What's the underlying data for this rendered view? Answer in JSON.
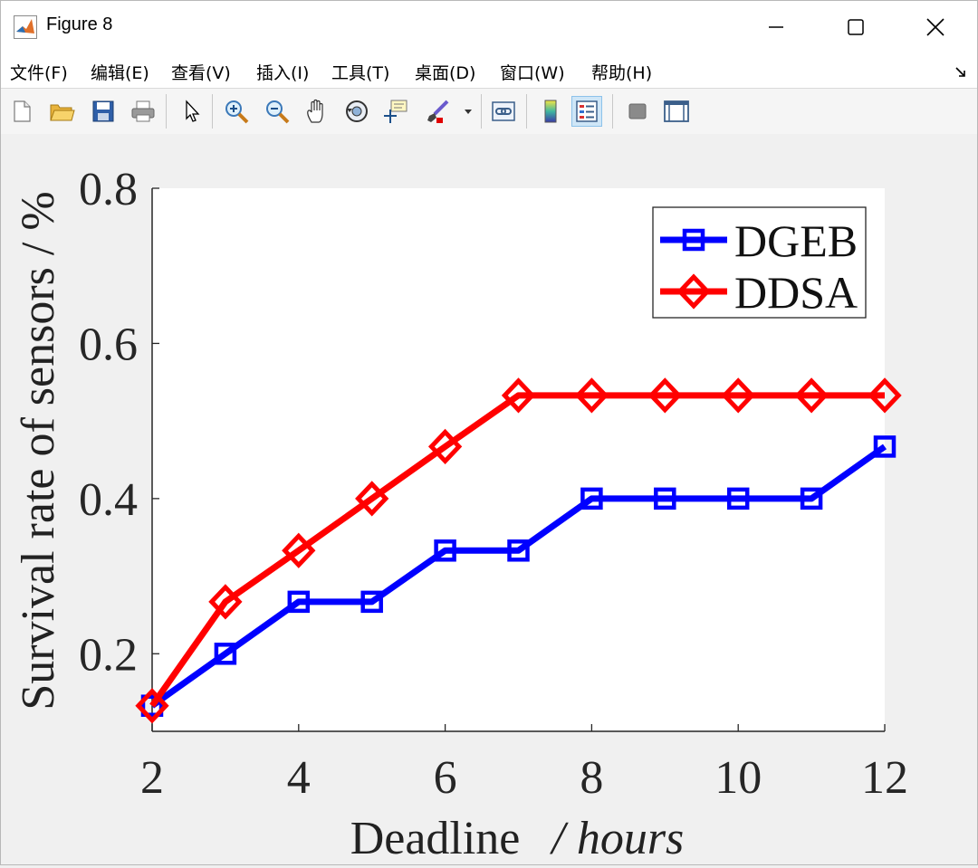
{
  "window": {
    "title": "Figure 8",
    "controls": {
      "minimize": "minimize-icon",
      "maximize": "maximize-icon",
      "close": "close-icon"
    }
  },
  "menu": [
    {
      "label": "文件(F)"
    },
    {
      "label": "编辑(E)"
    },
    {
      "label": "查看(V)"
    },
    {
      "label": "插入(I)"
    },
    {
      "label": "工具(T)"
    },
    {
      "label": "桌面(D)"
    },
    {
      "label": "窗口(W)"
    },
    {
      "label": "帮助(H)"
    }
  ],
  "toolbar": [
    "new-figure-icon",
    "open-file-icon",
    "save-icon",
    "print-icon",
    "pointer-icon",
    "zoom-in-icon",
    "zoom-out-icon",
    "pan-hand-icon",
    "rotate-3d-icon",
    "data-cursor-icon",
    "brush-icon",
    "brush-dropdown-icon",
    "link-plot-icon",
    "colorbar-icon",
    "legend-icon",
    "hide-plot-tools-icon",
    "show-plot-tools-icon"
  ],
  "chart_data": {
    "type": "line",
    "x": [
      2,
      3,
      4,
      5,
      6,
      7,
      8,
      9,
      10,
      11,
      12
    ],
    "series": [
      {
        "name": "DGEB",
        "color": "#0000ff",
        "marker": "square",
        "values": [
          0.133,
          0.2,
          0.267,
          0.267,
          0.333,
          0.333,
          0.4,
          0.4,
          0.4,
          0.4,
          0.467
        ]
      },
      {
        "name": "DDSA",
        "color": "#ff0000",
        "marker": "diamond",
        "values": [
          0.133,
          0.267,
          0.333,
          0.4,
          0.467,
          0.533,
          0.533,
          0.533,
          0.533,
          0.533,
          0.533
        ]
      }
    ],
    "xlabel": "Deadline",
    "xlabel_unit": "/ hours",
    "ylabel": "Survival rate of sensors / %",
    "xlim": [
      2,
      12
    ],
    "ylim": [
      0.1,
      0.8
    ],
    "xticks": [
      2,
      4,
      6,
      8,
      10,
      12
    ],
    "xtick_labels": [
      "2",
      "4",
      "6",
      "8",
      "10",
      "12"
    ],
    "yticks": [
      0.2,
      0.4,
      0.6,
      0.8
    ],
    "ytick_labels": [
      "0.2",
      "0.4",
      "0.6",
      "0.8"
    ],
    "legend_position": "top-right",
    "grid": false
  }
}
